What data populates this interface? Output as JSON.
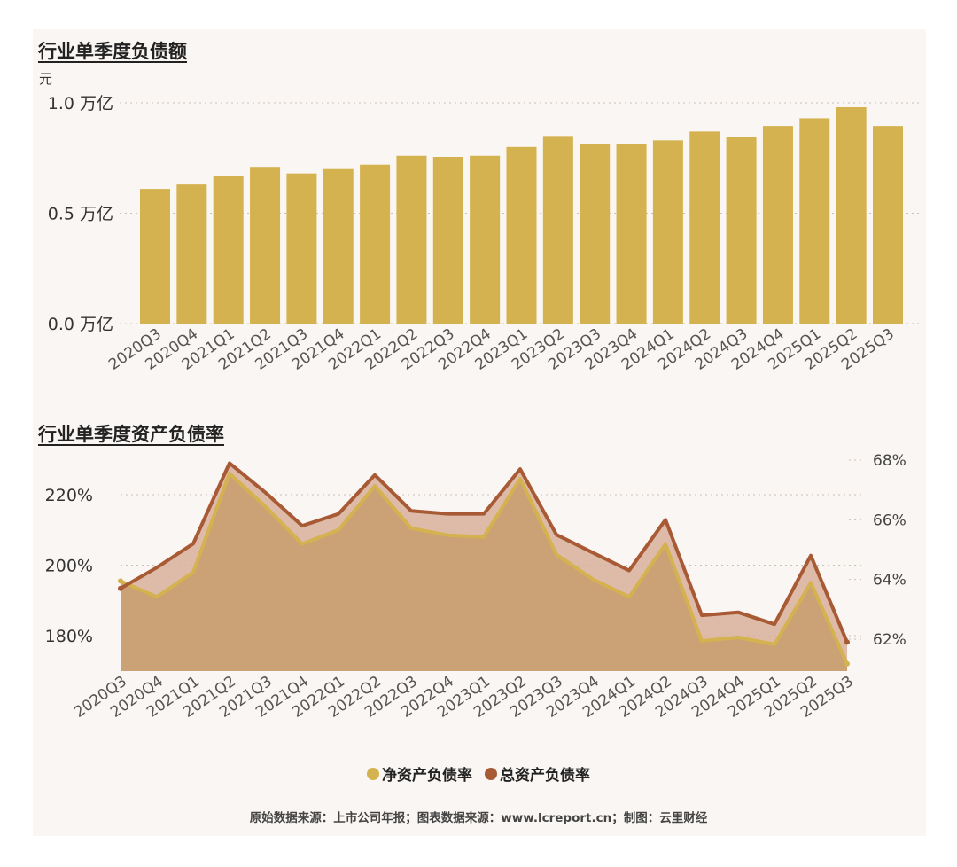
{
  "chart_data": [
    {
      "type": "bar",
      "title": "行业单季度负债额",
      "unit_label": "元",
      "categories": [
        "2020Q3",
        "2020Q4",
        "2021Q1",
        "2021Q2",
        "2021Q3",
        "2021Q4",
        "2022Q1",
        "2022Q2",
        "2022Q3",
        "2022Q4",
        "2023Q1",
        "2023Q2",
        "2023Q3",
        "2023Q4",
        "2024Q1",
        "2024Q2",
        "2024Q3",
        "2024Q4",
        "2025Q1",
        "2025Q2",
        "2025Q3"
      ],
      "values": [
        0.61,
        0.63,
        0.67,
        0.71,
        0.68,
        0.7,
        0.72,
        0.76,
        0.755,
        0.76,
        0.8,
        0.85,
        0.815,
        0.815,
        0.83,
        0.87,
        0.845,
        0.895,
        0.93,
        0.98,
        0.895
      ],
      "yticks": [
        "1.0 万亿",
        "0.5 万亿",
        "0.0 万亿"
      ],
      "ylim": [
        0,
        1.0
      ],
      "grid": true,
      "color": "#d4b24f"
    },
    {
      "type": "area",
      "title": "行业单季度资产负债率",
      "categories": [
        "2020Q3",
        "2020Q4",
        "2021Q1",
        "2021Q2",
        "2021Q3",
        "2021Q4",
        "2022Q1",
        "2022Q2",
        "2022Q3",
        "2022Q4",
        "2023Q1",
        "2023Q2",
        "2023Q3",
        "2023Q4",
        "2024Q1",
        "2024Q2",
        "2024Q3",
        "2024Q4",
        "2025Q1",
        "2025Q2",
        "2025Q3"
      ],
      "left_axis": {
        "ticks": [
          "220%",
          "200%",
          "180%"
        ],
        "values": [
          220,
          200,
          180
        ]
      },
      "right_axis": {
        "ticks": [
          "68%",
          "66%",
          "64%",
          "62%"
        ],
        "values": [
          68,
          66,
          64,
          62
        ]
      },
      "series": [
        {
          "name": "净资产负债率",
          "axis": "left",
          "color": "#d4b24f",
          "values": [
            195.5,
            191,
            198,
            226,
            216.5,
            206,
            210,
            222.5,
            210.5,
            208.5,
            208,
            224.5,
            203,
            196,
            191,
            206,
            178.5,
            179.5,
            177.5,
            195,
            172
          ]
        },
        {
          "name": "总资产负债率",
          "axis": "right",
          "color": "#a85a35",
          "values": [
            63.7,
            64.4,
            65.2,
            67.9,
            66.9,
            65.8,
            66.2,
            67.5,
            66.3,
            66.2,
            66.2,
            67.7,
            65.5,
            64.9,
            64.3,
            66.0,
            62.8,
            62.9,
            62.5,
            64.8,
            61.9
          ]
        }
      ],
      "legend_position": "bottom-center"
    }
  ],
  "source": "原始数据来源：上市公司年报；图表数据来源：www.lcreport.cn；制图：云里财经"
}
